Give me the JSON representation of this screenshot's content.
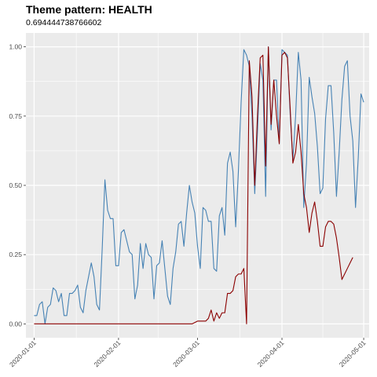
{
  "chart_data": {
    "type": "line",
    "title": "Theme pattern: HEALTH",
    "subtitle": "0.694444738766602",
    "xlabel": "",
    "ylabel": "",
    "x_range": [
      "2019-12-29",
      "2020-05-03"
    ],
    "ylim": [
      -0.05,
      1.05
    ],
    "y_ticks": [
      0.0,
      0.25,
      0.5,
      0.75,
      1.0
    ],
    "y_tick_labels": [
      "0.00",
      "0.25",
      "0.50",
      "0.75",
      "1.00"
    ],
    "x_ticks": [
      "2020-01-01",
      "2020-02-01",
      "2020-03-01",
      "2020-04-01",
      "2020-05-01"
    ],
    "x_tick_labels": [
      "2020-01-01",
      "2020-02-01",
      "2020-03-01",
      "2020-04-01",
      "2020-05-01"
    ],
    "grid": true,
    "legend": "none",
    "series": [
      {
        "color": "#4682b4",
        "points": [
          [
            "2020-01-01",
            0.03
          ],
          [
            "2020-01-02",
            0.03
          ],
          [
            "2020-01-03",
            0.07
          ],
          [
            "2020-01-04",
            0.08
          ],
          [
            "2020-01-05",
            0.0
          ],
          [
            "2020-01-06",
            0.06
          ],
          [
            "2020-01-07",
            0.07
          ],
          [
            "2020-01-08",
            0.13
          ],
          [
            "2020-01-09",
            0.12
          ],
          [
            "2020-01-10",
            0.08
          ],
          [
            "2020-01-11",
            0.11
          ],
          [
            "2020-01-12",
            0.03
          ],
          [
            "2020-01-13",
            0.03
          ],
          [
            "2020-01-14",
            0.11
          ],
          [
            "2020-01-15",
            0.11
          ],
          [
            "2020-01-16",
            0.12
          ],
          [
            "2020-01-17",
            0.14
          ],
          [
            "2020-01-18",
            0.06
          ],
          [
            "2020-01-19",
            0.04
          ],
          [
            "2020-01-20",
            0.12
          ],
          [
            "2020-01-21",
            0.17
          ],
          [
            "2020-01-22",
            0.22
          ],
          [
            "2020-01-23",
            0.17
          ],
          [
            "2020-01-24",
            0.07
          ],
          [
            "2020-01-25",
            0.05
          ],
          [
            "2020-01-26",
            0.27
          ],
          [
            "2020-01-27",
            0.52
          ],
          [
            "2020-01-28",
            0.41
          ],
          [
            "2020-01-29",
            0.38
          ],
          [
            "2020-01-30",
            0.38
          ],
          [
            "2020-01-31",
            0.21
          ],
          [
            "2020-02-01",
            0.21
          ],
          [
            "2020-02-02",
            0.33
          ],
          [
            "2020-02-03",
            0.34
          ],
          [
            "2020-02-04",
            0.3
          ],
          [
            "2020-02-05",
            0.26
          ],
          [
            "2020-02-06",
            0.25
          ],
          [
            "2020-02-07",
            0.09
          ],
          [
            "2020-02-08",
            0.14
          ],
          [
            "2020-02-09",
            0.29
          ],
          [
            "2020-02-10",
            0.2
          ],
          [
            "2020-02-11",
            0.29
          ],
          [
            "2020-02-12",
            0.25
          ],
          [
            "2020-02-13",
            0.24
          ],
          [
            "2020-02-14",
            0.09
          ],
          [
            "2020-02-15",
            0.21
          ],
          [
            "2020-02-16",
            0.22
          ],
          [
            "2020-02-17",
            0.3
          ],
          [
            "2020-02-18",
            0.2
          ],
          [
            "2020-02-19",
            0.1
          ],
          [
            "2020-02-20",
            0.07
          ],
          [
            "2020-02-21",
            0.2
          ],
          [
            "2020-02-22",
            0.26
          ],
          [
            "2020-02-23",
            0.36
          ],
          [
            "2020-02-24",
            0.37
          ],
          [
            "2020-02-25",
            0.28
          ],
          [
            "2020-02-26",
            0.4
          ],
          [
            "2020-02-27",
            0.5
          ],
          [
            "2020-02-28",
            0.44
          ],
          [
            "2020-02-29",
            0.4
          ],
          [
            "2020-03-01",
            0.28
          ],
          [
            "2020-03-02",
            0.2
          ],
          [
            "2020-03-03",
            0.42
          ],
          [
            "2020-03-04",
            0.41
          ],
          [
            "2020-03-05",
            0.37
          ],
          [
            "2020-03-06",
            0.37
          ],
          [
            "2020-03-07",
            0.2
          ],
          [
            "2020-03-08",
            0.19
          ],
          [
            "2020-03-09",
            0.39
          ],
          [
            "2020-03-10",
            0.42
          ],
          [
            "2020-03-11",
            0.32
          ],
          [
            "2020-03-12",
            0.58
          ],
          [
            "2020-03-13",
            0.62
          ],
          [
            "2020-03-14",
            0.55
          ],
          [
            "2020-03-15",
            0.35
          ],
          [
            "2020-03-16",
            0.55
          ],
          [
            "2020-03-17",
            0.8
          ],
          [
            "2020-03-18",
            0.99
          ],
          [
            "2020-03-19",
            0.97
          ],
          [
            "2020-03-20",
            0.93
          ],
          [
            "2020-03-21",
            0.75
          ],
          [
            "2020-03-22",
            0.47
          ],
          [
            "2020-03-23",
            0.69
          ],
          [
            "2020-03-24",
            0.94
          ],
          [
            "2020-03-25",
            0.88
          ],
          [
            "2020-03-26",
            0.46
          ],
          [
            "2020-03-27",
            1.0
          ],
          [
            "2020-03-28",
            0.7
          ],
          [
            "2020-03-29",
            0.88
          ],
          [
            "2020-03-30",
            0.88
          ],
          [
            "2020-03-31",
            0.65
          ],
          [
            "2020-04-01",
            0.99
          ],
          [
            "2020-04-02",
            0.98
          ],
          [
            "2020-04-03",
            0.97
          ],
          [
            "2020-04-04",
            0.76
          ],
          [
            "2020-04-05",
            0.59
          ],
          [
            "2020-04-06",
            0.75
          ],
          [
            "2020-04-07",
            0.98
          ],
          [
            "2020-04-08",
            0.88
          ],
          [
            "2020-04-09",
            0.42
          ],
          [
            "2020-04-10",
            0.58
          ],
          [
            "2020-04-11",
            0.89
          ],
          [
            "2020-04-12",
            0.82
          ],
          [
            "2020-04-13",
            0.76
          ],
          [
            "2020-04-14",
            0.64
          ],
          [
            "2020-04-15",
            0.47
          ],
          [
            "2020-04-16",
            0.49
          ],
          [
            "2020-04-17",
            0.74
          ],
          [
            "2020-04-18",
            0.86
          ],
          [
            "2020-04-19",
            0.86
          ],
          [
            "2020-04-20",
            0.69
          ],
          [
            "2020-04-21",
            0.46
          ],
          [
            "2020-04-22",
            0.62
          ],
          [
            "2020-04-23",
            0.81
          ],
          [
            "2020-04-24",
            0.93
          ],
          [
            "2020-04-25",
            0.95
          ],
          [
            "2020-04-26",
            0.75
          ],
          [
            "2020-04-27",
            0.66
          ],
          [
            "2020-04-28",
            0.42
          ],
          [
            "2020-04-29",
            0.6
          ],
          [
            "2020-04-30",
            0.83
          ],
          [
            "2020-05-01",
            0.8
          ]
        ]
      },
      {
        "color": "#8b0000",
        "points": [
          [
            "2020-01-01",
            0.0
          ],
          [
            "2020-02-28",
            0.0
          ],
          [
            "2020-03-01",
            0.01
          ],
          [
            "2020-03-02",
            0.01
          ],
          [
            "2020-03-03",
            0.01
          ],
          [
            "2020-03-04",
            0.01
          ],
          [
            "2020-03-05",
            0.02
          ],
          [
            "2020-03-06",
            0.05
          ],
          [
            "2020-03-07",
            0.01
          ],
          [
            "2020-03-08",
            0.04
          ],
          [
            "2020-03-09",
            0.02
          ],
          [
            "2020-03-10",
            0.04
          ],
          [
            "2020-03-11",
            0.04
          ],
          [
            "2020-03-12",
            0.11
          ],
          [
            "2020-03-13",
            0.11
          ],
          [
            "2020-03-14",
            0.12
          ],
          [
            "2020-03-15",
            0.17
          ],
          [
            "2020-03-16",
            0.18
          ],
          [
            "2020-03-17",
            0.18
          ],
          [
            "2020-03-18",
            0.2
          ],
          [
            "2020-03-19",
            0.0
          ],
          [
            "2020-03-20",
            0.95
          ],
          [
            "2020-03-21",
            0.82
          ],
          [
            "2020-03-22",
            0.5
          ],
          [
            "2020-03-23",
            0.75
          ],
          [
            "2020-03-24",
            0.96
          ],
          [
            "2020-03-25",
            0.97
          ],
          [
            "2020-03-26",
            0.57
          ],
          [
            "2020-03-27",
            1.0
          ],
          [
            "2020-03-28",
            0.72
          ],
          [
            "2020-03-29",
            0.88
          ],
          [
            "2020-03-30",
            0.75
          ],
          [
            "2020-03-31",
            0.65
          ],
          [
            "2020-04-01",
            0.97
          ],
          [
            "2020-04-02",
            0.98
          ],
          [
            "2020-04-03",
            0.96
          ],
          [
            "2020-04-04",
            0.78
          ],
          [
            "2020-04-05",
            0.58
          ],
          [
            "2020-04-06",
            0.62
          ],
          [
            "2020-04-07",
            0.72
          ],
          [
            "2020-04-08",
            0.62
          ],
          [
            "2020-04-09",
            0.47
          ],
          [
            "2020-04-10",
            0.42
          ],
          [
            "2020-04-11",
            0.33
          ],
          [
            "2020-04-12",
            0.4
          ],
          [
            "2020-04-13",
            0.44
          ],
          [
            "2020-04-14",
            0.37
          ],
          [
            "2020-04-15",
            0.28
          ],
          [
            "2020-04-16",
            0.28
          ],
          [
            "2020-04-17",
            0.35
          ],
          [
            "2020-04-18",
            0.37
          ],
          [
            "2020-04-19",
            0.37
          ],
          [
            "2020-04-20",
            0.36
          ],
          [
            "2020-04-21",
            0.31
          ],
          [
            "2020-04-22",
            0.24
          ],
          [
            "2020-04-23",
            0.16
          ],
          [
            "2020-04-24",
            0.18
          ],
          [
            "2020-04-25",
            0.2
          ],
          [
            "2020-04-26",
            0.22
          ],
          [
            "2020-04-27",
            0.24
          ]
        ]
      }
    ]
  }
}
